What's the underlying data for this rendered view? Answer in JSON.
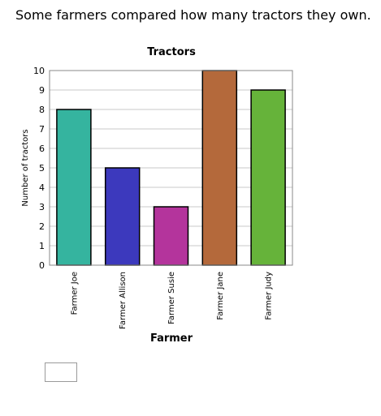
{
  "question": "Some farmers compared how many tractors they own.",
  "chart_data": {
    "type": "bar",
    "title": "Tractors",
    "xlabel": "Farmer",
    "ylabel": "Number of tractors",
    "ylim": [
      0,
      10
    ],
    "yticks": [
      "0",
      "1",
      "2",
      "3",
      "4",
      "5",
      "6",
      "7",
      "8",
      "9",
      "10"
    ],
    "categories": [
      "Farmer Joe",
      "Farmer Allison",
      "Farmer Susie",
      "Farmer Jane",
      "Farmer Judy"
    ],
    "values": [
      8,
      5,
      3,
      10,
      9
    ],
    "colors": [
      "#35b49f",
      "#3c39bd",
      "#b4349c",
      "#b4693b",
      "#66b33a"
    ],
    "grid": true
  },
  "answer": {
    "value": ""
  }
}
